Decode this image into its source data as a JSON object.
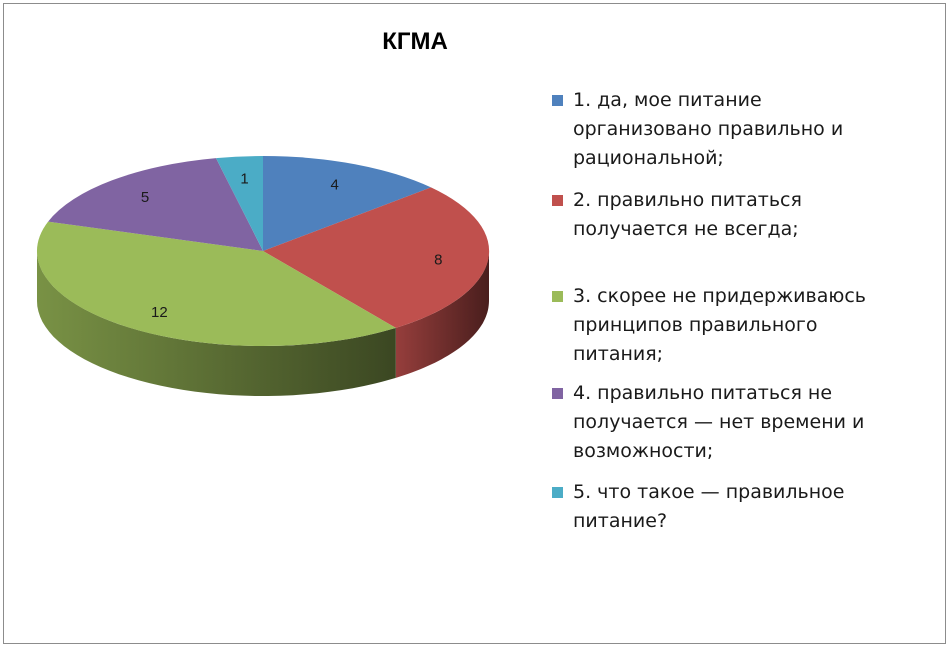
{
  "chart_data": {
    "type": "pie",
    "title": "КГМА",
    "categories": [
      "1. да, мое питание организовано правильно и рациональной;",
      "2. правильно питаться получается не всегда;",
      "3. скорее не придерживаюсь принципов правильного питания;",
      "4. правильно питаться не получается — нет времени и возможности;",
      "5. что такое — правильное питание?"
    ],
    "values": [
      4,
      8,
      12,
      5,
      1
    ],
    "data_labels": [
      "4",
      "8",
      "12",
      "5",
      "1"
    ],
    "colors": [
      "#4F81BD",
      "#C0504D",
      "#9BBB59",
      "#8064A2",
      "#4BACC6"
    ],
    "legend_position": "right",
    "style": "3d"
  }
}
